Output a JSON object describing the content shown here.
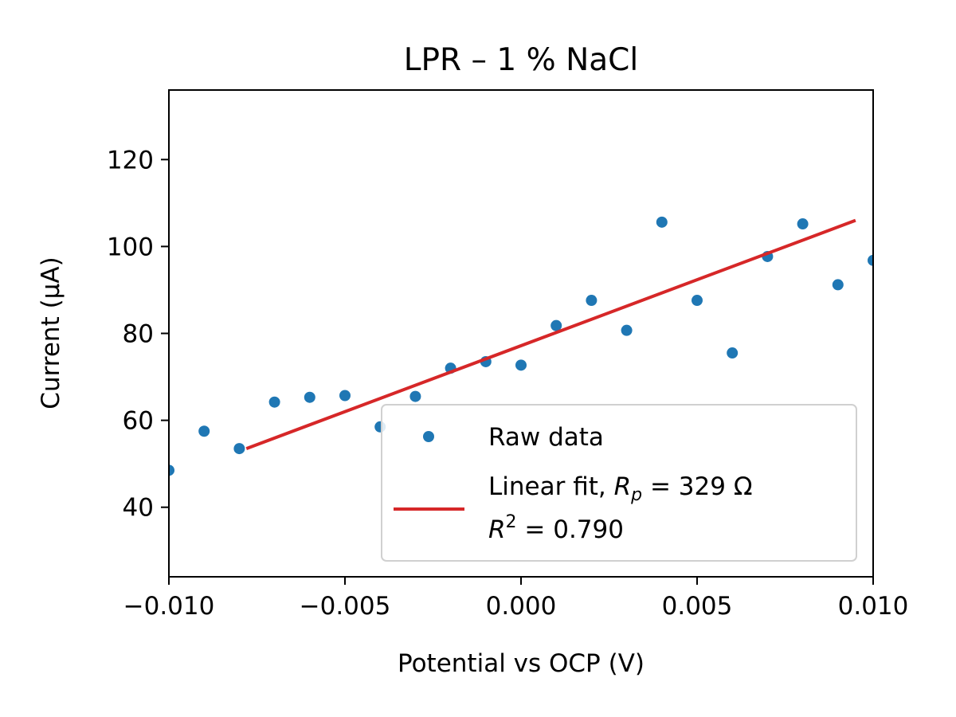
{
  "chart_data": {
    "type": "scatter",
    "title": "LPR – 1 % NaCl",
    "xlabel": "Potential vs OCP (V)",
    "ylabel": "Current (µA)",
    "xlim": [
      -0.01,
      0.01
    ],
    "ylim": [
      24,
      136
    ],
    "xticks": [
      -0.01,
      -0.005,
      0.0,
      0.005,
      0.01
    ],
    "xtick_labels": [
      "−0.010",
      "−0.005",
      "0.000",
      "0.005",
      "0.010"
    ],
    "yticks": [
      40,
      60,
      80,
      100,
      120
    ],
    "ytick_labels": [
      "40",
      "60",
      "80",
      "100",
      "120"
    ],
    "grid": false,
    "legend_position": "lower-right",
    "series": [
      {
        "name": "Raw data",
        "kind": "scatter",
        "color": "#1f77b4",
        "x": [
          -0.01,
          -0.009,
          -0.008,
          -0.007,
          -0.006,
          -0.005,
          -0.004,
          -0.003,
          -0.002,
          -0.001,
          0.0,
          0.001,
          0.002,
          0.003,
          0.004,
          0.005,
          0.006,
          0.007,
          0.008,
          0.009,
          0.01
        ],
        "y": [
          48.5,
          57.5,
          53.5,
          64.2,
          65.3,
          65.7,
          58.5,
          65.5,
          72.0,
          73.5,
          72.7,
          81.8,
          87.6,
          80.7,
          105.6,
          87.6,
          75.5,
          97.7,
          105.2,
          91.2,
          96.8
        ]
      },
      {
        "name": "Linear fit, R_p = 329 Ω  R^2 = 0.790",
        "kind": "line",
        "color": "#d62728",
        "x": [
          -0.0078,
          0.0095
        ],
        "y": [
          53.5,
          106.0
        ]
      }
    ]
  },
  "legend": {
    "raw_label": "Raw data",
    "fit_prefix": "Linear fit, ",
    "fit_r_symbol": "R",
    "fit_r_sub": "p",
    "fit_r_value": " = 329 Ω",
    "r2_symbol": "R",
    "r2_sup": "2",
    "r2_value": " = 0.790"
  }
}
